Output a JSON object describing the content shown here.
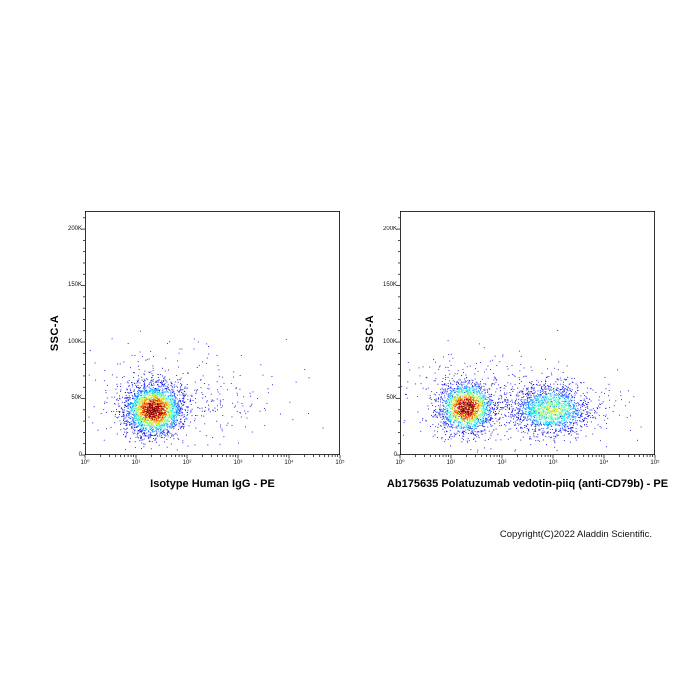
{
  "figure": {
    "copyright": "Copyright(C)2022 Aladdin Scientific."
  },
  "chart_data": [
    {
      "type": "scatter",
      "subtype": "flow-cytometry-density-plot",
      "xlabel": "Isotype Human IgG - PE",
      "ylabel": "SSC-A",
      "x_scale": "log10",
      "x_decade_range": [
        0,
        5
      ],
      "x_ticks": [
        "10⁰",
        "10¹",
        "10²",
        "10³",
        "10⁴",
        "10⁵"
      ],
      "y_range": [
        0,
        216000
      ],
      "y_ticks": [
        {
          "value": 0,
          "label": "0"
        },
        {
          "value": 50000,
          "label": "50K"
        },
        {
          "value": 100000,
          "label": "100K"
        },
        {
          "value": 150000,
          "label": "150K"
        },
        {
          "value": 200000,
          "label": "200K"
        }
      ],
      "grid": false,
      "legend": "none",
      "colormap": "jet-density",
      "clusters": [
        {
          "name": "halo",
          "cx_decade": 1.5,
          "cy_ssc": 50000,
          "sx_decade": 0.75,
          "sy_ssc": 22000,
          "n": 340,
          "peak_density": 0.12
        },
        {
          "name": "sparse-debris",
          "cx_decade": 2.2,
          "cy_ssc": 45000,
          "sx_decade": 1.1,
          "sy_ssc": 20000,
          "n": 90,
          "peak_density": 0.08
        },
        {
          "name": "far-outliers",
          "cx_decade": 3.3,
          "cy_ssc": 50000,
          "sx_decade": 0.5,
          "sy_ssc": 20000,
          "n": 16,
          "peak_density": 0.07
        },
        {
          "name": "negative-population",
          "cx_decade": 1.35,
          "cy_ssc": 40000,
          "sx_decade": 0.28,
          "sy_ssc": 11000,
          "n": 2800,
          "peak_density": 1.0
        }
      ]
    },
    {
      "type": "scatter",
      "subtype": "flow-cytometry-density-plot",
      "xlabel": "Ab175635 Polatuzumab vedotin-piiq (anti-CD79b) - PE",
      "ylabel": "SSC-A",
      "x_scale": "log10",
      "x_decade_range": [
        0,
        5
      ],
      "x_ticks": [
        "10⁰",
        "10¹",
        "10²",
        "10³",
        "10⁴",
        "10⁵"
      ],
      "y_range": [
        0,
        216000
      ],
      "y_ticks": [
        {
          "value": 0,
          "label": "0"
        },
        {
          "value": 50000,
          "label": "50K"
        },
        {
          "value": 100000,
          "label": "100K"
        },
        {
          "value": 150000,
          "label": "150K"
        },
        {
          "value": 200000,
          "label": "200K"
        }
      ],
      "grid": false,
      "legend": "none",
      "colormap": "jet-density",
      "clusters": [
        {
          "name": "halo-negative",
          "cx_decade": 1.4,
          "cy_ssc": 52000,
          "sx_decade": 0.7,
          "sy_ssc": 20000,
          "n": 240,
          "peak_density": 0.12
        },
        {
          "name": "halo-positive",
          "cx_decade": 2.9,
          "cy_ssc": 45000,
          "sx_decade": 0.7,
          "sy_ssc": 16000,
          "n": 200,
          "peak_density": 0.12
        },
        {
          "name": "bridge-sparse",
          "cx_decade": 2.1,
          "cy_ssc": 42000,
          "sx_decade": 1.2,
          "sy_ssc": 18000,
          "n": 120,
          "peak_density": 0.08
        },
        {
          "name": "far-outliers",
          "cx_decade": 3.9,
          "cy_ssc": 45000,
          "sx_decade": 0.4,
          "sy_ssc": 18000,
          "n": 10,
          "peak_density": 0.07
        },
        {
          "name": "negative-population",
          "cx_decade": 1.3,
          "cy_ssc": 42000,
          "sx_decade": 0.26,
          "sy_ssc": 11000,
          "n": 2000,
          "peak_density": 1.0
        },
        {
          "name": "positive-population-anti-CD79b",
          "cx_decade": 2.95,
          "cy_ssc": 40000,
          "sx_decade": 0.38,
          "sy_ssc": 11000,
          "n": 1600,
          "peak_density": 0.55
        }
      ]
    }
  ]
}
